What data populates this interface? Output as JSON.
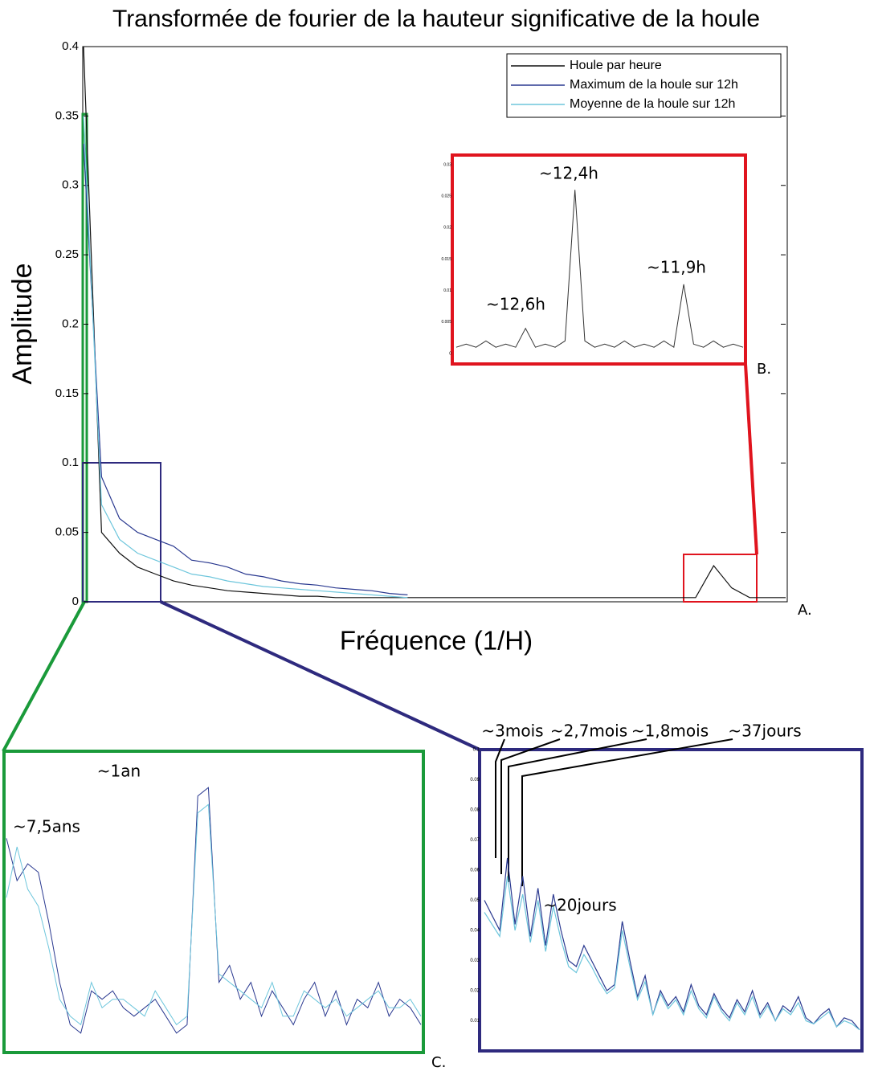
{
  "chart_data": [
    {
      "type": "line",
      "title": "Transformée de fourier de la hauteur significative de la houle",
      "ylabel": "Amplitude",
      "xlabel": "Fréquence (1/H)",
      "ylim": [
        0,
        0.4
      ],
      "yticks": [
        0,
        0.05,
        0.1,
        0.15,
        0.2,
        0.25,
        0.3,
        0.35,
        0.4
      ],
      "legend": "upper right",
      "series": [
        {
          "name": "Houle par heure",
          "color": "#111111",
          "values": [
            0.4,
            0.05,
            0.035,
            0.025,
            0.02,
            0.015,
            0.012,
            0.01,
            0.008,
            0.007,
            0.006,
            0.005,
            0.004,
            0.004,
            0.003,
            0.003,
            0.003,
            0.003,
            0.003,
            0.003,
            0.003,
            0.003,
            0.003,
            0.003,
            0.003,
            0.003,
            0.003,
            0.003,
            0.003,
            0.003,
            0.003,
            0.003,
            0.003,
            0.003,
            0.003,
            0.026,
            0.01,
            0.003,
            0.003,
            0.003
          ]
        },
        {
          "name": "Maximum de la houle sur 12h",
          "color": "#2a3990",
          "values": [
            0.33,
            0.09,
            0.06,
            0.05,
            0.045,
            0.04,
            0.03,
            0.028,
            0.025,
            0.02,
            0.018,
            0.015,
            0.013,
            0.012,
            0.01,
            0.009,
            0.008,
            0.006,
            0.005,
            null,
            null,
            null,
            null,
            null,
            null,
            null,
            null,
            null,
            null,
            null,
            null,
            null,
            null,
            null,
            null,
            null,
            null,
            null,
            null,
            null
          ]
        },
        {
          "name": "Moyenne de la houle sur 12h",
          "color": "#6ec6dc",
          "values": [
            0.35,
            0.07,
            0.045,
            0.035,
            0.03,
            0.025,
            0.02,
            0.018,
            0.015,
            0.013,
            0.011,
            0.01,
            0.009,
            0.008,
            0.007,
            0.006,
            0.005,
            0.004,
            0.003,
            null,
            null,
            null,
            null,
            null,
            null,
            null,
            null,
            null,
            null,
            null,
            null,
            null,
            null,
            null,
            null,
            null,
            null,
            null,
            null,
            null
          ]
        }
      ]
    },
    {
      "type": "line",
      "ylim": [
        0,
        0.03
      ],
      "yticks": [
        0,
        0.005,
        0.01,
        0.015,
        0.02,
        0.025,
        0.03
      ],
      "annotations": [
        "~12,4h",
        "~11,9h",
        "~12,6h"
      ],
      "series": [
        {
          "color": "#333333",
          "values": [
            0.001,
            0.0015,
            0.001,
            0.002,
            0.001,
            0.0015,
            0.001,
            0.004,
            0.001,
            0.0015,
            0.001,
            0.002,
            0.026,
            0.002,
            0.001,
            0.0015,
            0.001,
            0.002,
            0.001,
            0.0015,
            0.001,
            0.002,
            0.001,
            0.011,
            0.0015,
            0.001,
            0.002,
            0.001,
            0.0015,
            0.001
          ]
        }
      ]
    },
    {
      "type": "line",
      "ylim": [
        0,
        0.35
      ],
      "annotations": [
        "~7,5ans",
        "~1an"
      ],
      "series": [
        {
          "color": "#2a3990",
          "values": [
            0.25,
            0.2,
            0.22,
            0.21,
            0.15,
            0.08,
            0.03,
            0.02,
            0.07,
            0.06,
            0.07,
            0.05,
            0.04,
            0.05,
            0.06,
            0.04,
            0.02,
            0.03,
            0.3,
            0.31,
            0.08,
            0.1,
            0.06,
            0.08,
            0.04,
            0.07,
            0.05,
            0.03,
            0.06,
            0.08,
            0.04,
            0.07,
            0.03,
            0.06,
            0.05,
            0.08,
            0.04,
            0.06,
            0.05,
            0.03
          ]
        },
        {
          "color": "#6ec6dc",
          "values": [
            0.18,
            0.24,
            0.19,
            0.17,
            0.12,
            0.06,
            0.04,
            0.03,
            0.08,
            0.05,
            0.06,
            0.06,
            0.05,
            0.04,
            0.07,
            0.05,
            0.03,
            0.04,
            0.28,
            0.29,
            0.09,
            0.08,
            0.07,
            0.06,
            0.05,
            0.08,
            0.04,
            0.04,
            0.07,
            0.06,
            0.05,
            0.06,
            0.04,
            0.05,
            0.06,
            0.07,
            0.05,
            0.05,
            0.06,
            0.04
          ]
        }
      ]
    },
    {
      "type": "line",
      "ylim": [
        0,
        0.1
      ],
      "yticks": [
        0.01,
        0.02,
        0.03,
        0.04,
        0.05,
        0.06,
        0.07,
        0.08,
        0.09,
        0.1
      ],
      "annotations": [
        "~3mois",
        "~2,7mois",
        "~1,8mois",
        "~37jours",
        "~20jours"
      ],
      "series": [
        {
          "color": "#2a3990",
          "values": [
            0.05,
            0.045,
            0.04,
            0.064,
            0.042,
            0.058,
            0.038,
            0.054,
            0.035,
            0.052,
            0.04,
            0.03,
            0.028,
            0.035,
            0.03,
            0.025,
            0.02,
            0.022,
            0.043,
            0.03,
            0.018,
            0.025,
            0.012,
            0.02,
            0.015,
            0.018,
            0.013,
            0.022,
            0.015,
            0.012,
            0.019,
            0.014,
            0.011,
            0.017,
            0.013,
            0.02,
            0.012,
            0.016,
            0.01,
            0.015,
            0.013,
            0.018,
            0.011,
            0.009,
            0.012,
            0.014,
            0.008,
            0.011,
            0.01,
            0.007
          ]
        },
        {
          "color": "#6ec6dc",
          "values": [
            0.046,
            0.042,
            0.038,
            0.058,
            0.04,
            0.052,
            0.036,
            0.05,
            0.033,
            0.048,
            0.037,
            0.028,
            0.026,
            0.032,
            0.028,
            0.023,
            0.019,
            0.021,
            0.04,
            0.028,
            0.017,
            0.023,
            0.012,
            0.019,
            0.014,
            0.017,
            0.012,
            0.02,
            0.014,
            0.011,
            0.018,
            0.013,
            0.01,
            0.016,
            0.012,
            0.018,
            0.011,
            0.015,
            0.01,
            0.014,
            0.012,
            0.016,
            0.01,
            0.009,
            0.011,
            0.013,
            0.008,
            0.01,
            0.009,
            0.007
          ]
        }
      ]
    }
  ],
  "panel_labels": [
    "A.",
    "B.",
    "C."
  ]
}
